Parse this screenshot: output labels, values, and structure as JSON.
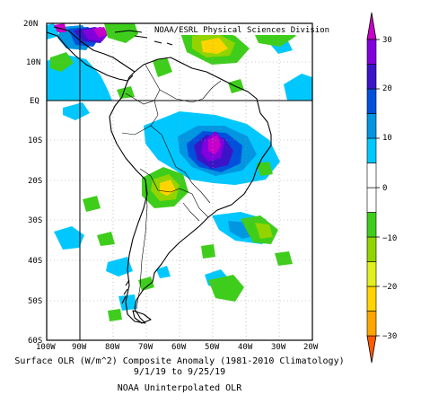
{
  "map": {
    "credit": "NOAA/ESRL Physical Sciences Division",
    "lat_labels": [
      "20N",
      "10N",
      "EQ",
      "10S",
      "20S",
      "30S",
      "40S",
      "50S",
      "60S"
    ],
    "lon_labels": [
      "100W",
      "90W",
      "80W",
      "70W",
      "60W",
      "50W",
      "40W",
      "30W",
      "20W"
    ]
  },
  "colorbar": {
    "ticks": [
      "30",
      "20",
      "10",
      "0",
      "−10",
      "−20",
      "−30"
    ],
    "colors": [
      "#ff5a00",
      "#ffa500",
      "#ffd400",
      "#e0ef1e",
      "#92d400",
      "#3fcd1c",
      "#ffffff",
      "#ffffff",
      "#00c8ff",
      "#0096e1",
      "#0050dc",
      "#3c14c8",
      "#8200dc",
      "#c800c8"
    ]
  },
  "caption": {
    "line1": "Surface OLR (W/m^2) Composite Anomaly (1981-2010 Climatology)",
    "line2": "9/1/19 to 9/25/19",
    "line3": "NOAA Uninterpolated OLR"
  }
}
